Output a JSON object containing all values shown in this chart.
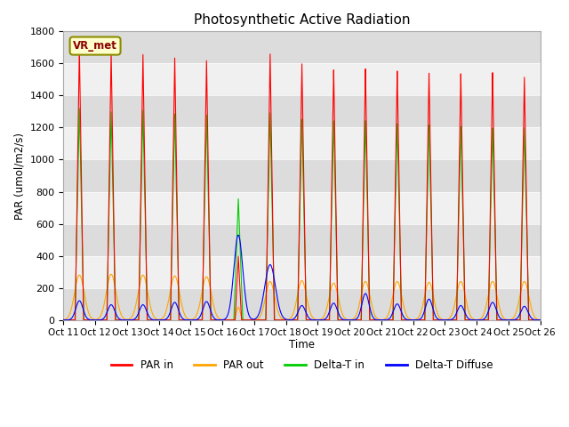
{
  "title": "Photosynthetic Active Radiation",
  "ylabel": "PAR (umol/m2/s)",
  "xlabel": "Time",
  "xlim": [
    0,
    15
  ],
  "ylim": [
    0,
    1800
  ],
  "yticks": [
    0,
    200,
    400,
    600,
    800,
    1000,
    1200,
    1400,
    1600,
    1800
  ],
  "xtick_labels": [
    "Oct 11",
    "Oct 12",
    "Oct 13",
    "Oct 14",
    "Oct 15",
    "Oct 16",
    "Oct 17",
    "Oct 18",
    "Oct 19",
    "Oct 20",
    "Oct 21",
    "Oct 22",
    "Oct 23",
    "Oct 24",
    "Oct 25",
    "Oct 26"
  ],
  "colors": {
    "par_in": "#ff0000",
    "par_out": "#ffa500",
    "delta_t_in": "#00cc00",
    "delta_t_diffuse": "#0000ff"
  },
  "bg_dark": "#dcdcdc",
  "bg_light": "#f0f0f0",
  "legend_label": "VR_met",
  "series_labels": [
    "PAR in",
    "PAR out",
    "Delta-T in",
    "Delta-T Diffuse"
  ],
  "par_in_peaks": [
    1700,
    1680,
    1660,
    1640,
    1625,
    400,
    1670,
    1610,
    1570,
    1575,
    1560,
    1545,
    1540,
    1545,
    1515
  ],
  "par_out_peaks": [
    280,
    285,
    280,
    275,
    270,
    80,
    240,
    245,
    230,
    240,
    240,
    235,
    240,
    240,
    240
  ],
  "delta_t_in_peaks": [
    1320,
    1300,
    1310,
    1290,
    1285,
    760,
    1300,
    1260,
    1250,
    1250,
    1230,
    1220,
    1210,
    1200,
    1200
  ],
  "delta_t_diffuse_peaks": [
    120,
    95,
    95,
    110,
    115,
    530,
    345,
    90,
    105,
    165,
    100,
    130,
    90,
    110,
    85
  ],
  "par_out_width": [
    0.38,
    0.38,
    0.38,
    0.38,
    0.38,
    0.15,
    0.36,
    0.36,
    0.36,
    0.36,
    0.36,
    0.36,
    0.36,
    0.36,
    0.36
  ],
  "par_in_width": [
    0.13,
    0.13,
    0.13,
    0.13,
    0.13,
    0.1,
    0.13,
    0.13,
    0.13,
    0.13,
    0.13,
    0.13,
    0.13,
    0.13,
    0.13
  ],
  "delta_t_in_width": [
    0.14,
    0.14,
    0.14,
    0.14,
    0.14,
    0.14,
    0.14,
    0.14,
    0.14,
    0.14,
    0.14,
    0.14,
    0.14,
    0.14,
    0.14
  ],
  "delta_t_diff_width": [
    0.28,
    0.28,
    0.28,
    0.28,
    0.28,
    0.35,
    0.42,
    0.28,
    0.28,
    0.28,
    0.28,
    0.28,
    0.28,
    0.28,
    0.28
  ],
  "day_centers": [
    0.5,
    1.5,
    2.5,
    3.5,
    4.5,
    5.5,
    6.5,
    7.5,
    8.5,
    9.5,
    10.5,
    11.5,
    12.5,
    13.5,
    14.5
  ]
}
